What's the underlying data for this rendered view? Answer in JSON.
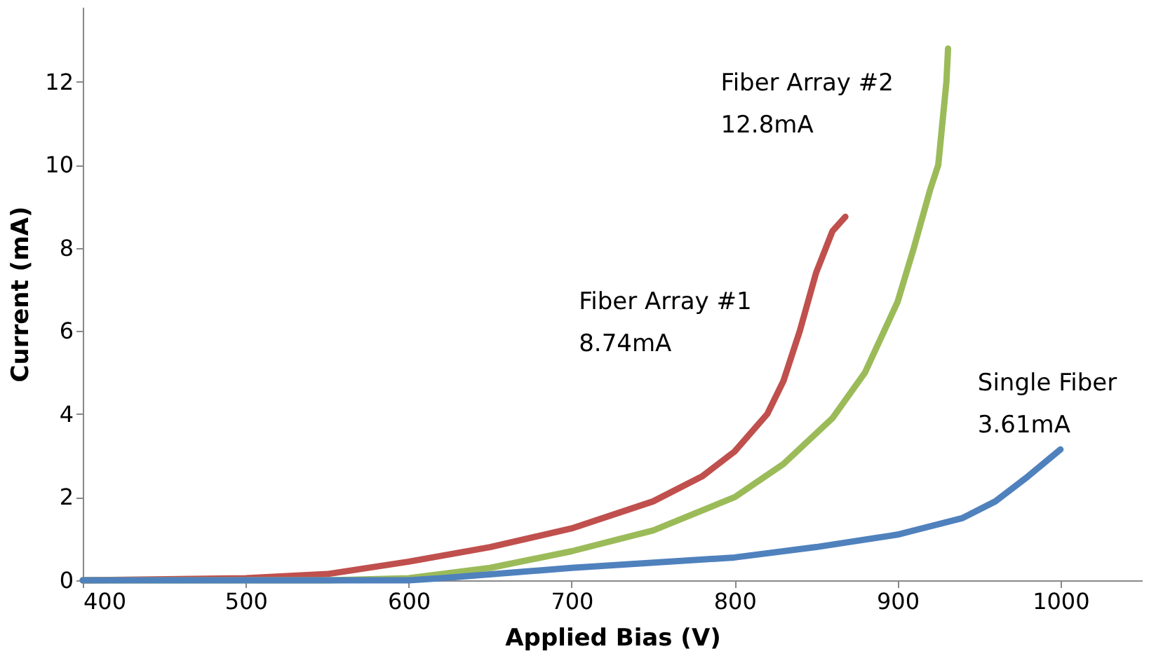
{
  "chart_data": {
    "type": "line",
    "xlabel": "Applied Bias (V)",
    "ylabel": "Current (mA)",
    "xlim": [
      400,
      1050
    ],
    "xticks": [
      400,
      500,
      600,
      700,
      800,
      900,
      1000
    ],
    "ylim": [
      0,
      13.8
    ],
    "yticks": [
      0,
      2,
      4,
      6,
      8,
      10,
      12
    ],
    "grid": false,
    "marker": "none",
    "line_style": "solid",
    "series": [
      {
        "name": "Fiber Array #1",
        "color": "#c0504d",
        "x": [
          400,
          500,
          550,
          600,
          650,
          700,
          750,
          780,
          800,
          820,
          830,
          840,
          850,
          860,
          868
        ],
        "values": [
          0,
          0.05,
          0.15,
          0.45,
          0.8,
          1.25,
          1.9,
          2.5,
          3.1,
          4.0,
          4.8,
          6.0,
          7.4,
          8.4,
          8.75
        ]
      },
      {
        "name": "Fiber Array #2",
        "color": "#9bbb59",
        "x": [
          400,
          550,
          600,
          650,
          700,
          750,
          800,
          830,
          860,
          880,
          900,
          910,
          920,
          925,
          930,
          931
        ],
        "values": [
          0,
          0,
          0.05,
          0.3,
          0.7,
          1.2,
          2.0,
          2.8,
          3.9,
          5.0,
          6.7,
          8.0,
          9.4,
          10.0,
          12.0,
          12.8
        ]
      },
      {
        "name": "Single Fiber",
        "color": "#4f81bd",
        "x": [
          400,
          600,
          620,
          700,
          800,
          850,
          900,
          940,
          960,
          980,
          1000
        ],
        "values": [
          0,
          0,
          0.05,
          0.3,
          0.55,
          0.8,
          1.1,
          1.5,
          1.9,
          2.5,
          3.15
        ]
      }
    ],
    "annotations": [
      "8.74mA",
      "12.8mA",
      "3.61mA"
    ]
  }
}
